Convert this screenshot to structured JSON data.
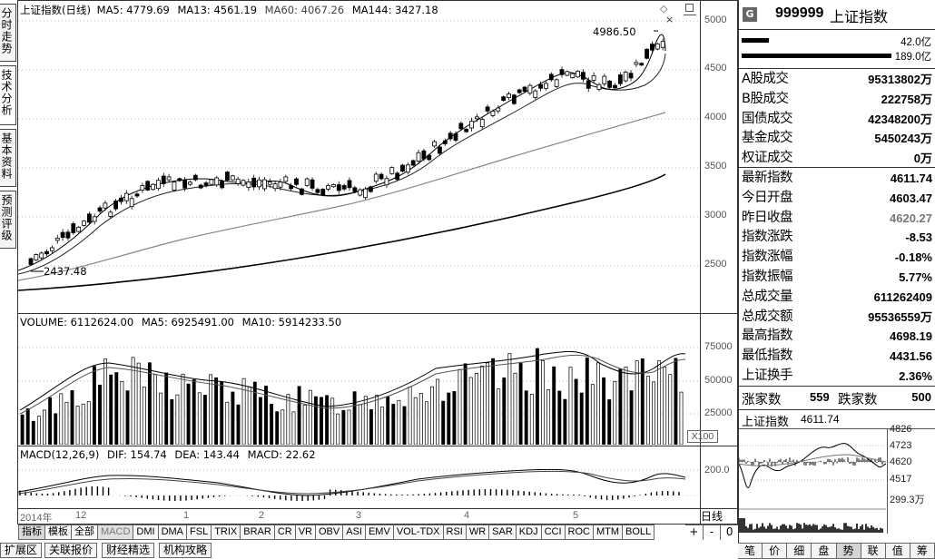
{
  "left_tabs": [
    "分时走势",
    "技术分析",
    "基本资料",
    "预测评级"
  ],
  "main_header": {
    "name": "上证指数(日线)",
    "ma5": "MA5: 4779.69",
    "ma13": "MA13: 4561.19",
    "ma60": "MA60: 4067.26",
    "ma144": "MA144: 3427.18"
  },
  "price_axis": [
    "5000",
    "4500",
    "4000",
    "3500",
    "3000",
    "2500"
  ],
  "price_annotations": {
    "high": "4986.50",
    "low": "2437.48"
  },
  "volume_header": {
    "volume": "VOLUME: 6112624.00",
    "ma5": "MA5: 6925491.00",
    "ma10": "MA10: 5914233.50"
  },
  "volume_axis": [
    "75000",
    "50000",
    "25000"
  ],
  "volume_unit": "X100",
  "macd_header": {
    "name": "MACD(12,26,9)",
    "dif": "DIF: 154.74",
    "dea": "DEA: 143.44",
    "macd": "MACD: 22.62"
  },
  "macd_axis": [
    "200.0"
  ],
  "x_axis": {
    "year": "2014年",
    "months": [
      "12",
      "1",
      "2",
      "3",
      "4",
      "5"
    ]
  },
  "indicator_buttons": [
    "指标",
    "模板",
    "全部",
    "MACD",
    "DMI",
    "DMA",
    "FSL",
    "TRIX",
    "BRAR",
    "CR",
    "VR",
    "OBV",
    "ASI",
    "EMV",
    "VOL-TDX",
    "RSI",
    "WR",
    "SAR",
    "KDJ",
    "CCI",
    "ROC",
    "MTM",
    "BOLL"
  ],
  "period_control": {
    "label": "日线",
    "plus": "+",
    "minus": "-",
    "zero": "0"
  },
  "bottom_tabs": [
    "扩展区",
    "关联报价",
    "财经精选",
    "机构攻略"
  ],
  "right_panel": {
    "badge": "G",
    "code": "999999",
    "name": "上证指数",
    "bar1_value": "42.0亿",
    "bar2_value": "189.0亿",
    "rows1": [
      {
        "k": "A股成交",
        "v": "95313802万"
      },
      {
        "k": "B股成交",
        "v": "222758万"
      },
      {
        "k": "国债成交",
        "v": "42348200万"
      },
      {
        "k": "基金成交",
        "v": "5450243万"
      },
      {
        "k": "权证成交",
        "v": "0万"
      }
    ],
    "rows2": [
      {
        "k": "最新指数",
        "v": "4611.74"
      },
      {
        "k": "今日开盘",
        "v": "4603.47"
      },
      {
        "k": "昨日收盘",
        "v": "4620.27"
      },
      {
        "k": "指数涨跌",
        "v": "-8.53"
      },
      {
        "k": "指数涨幅",
        "v": "-0.18%"
      },
      {
        "k": "指数振幅",
        "v": "5.77%"
      },
      {
        "k": "总成交量",
        "v": "611262409"
      },
      {
        "k": "总成交额",
        "v": "95536559万"
      },
      {
        "k": "最高指数",
        "v": "4698.19"
      },
      {
        "k": "最低指数",
        "v": "4431.56"
      },
      {
        "k": "上证换手",
        "v": "2.36%"
      }
    ],
    "rise_label": "涨家数",
    "rise_value": "559",
    "fall_label": "跌家数",
    "fall_value": "500",
    "mini_title": "上证指数",
    "mini_value": "4611.74",
    "mini_axis": [
      "4826",
      "4723",
      "4620",
      "4517",
      "299.3万"
    ],
    "tabs": [
      "笔",
      "价",
      "细",
      "盘",
      "势",
      "联",
      "值",
      "筹"
    ]
  }
}
